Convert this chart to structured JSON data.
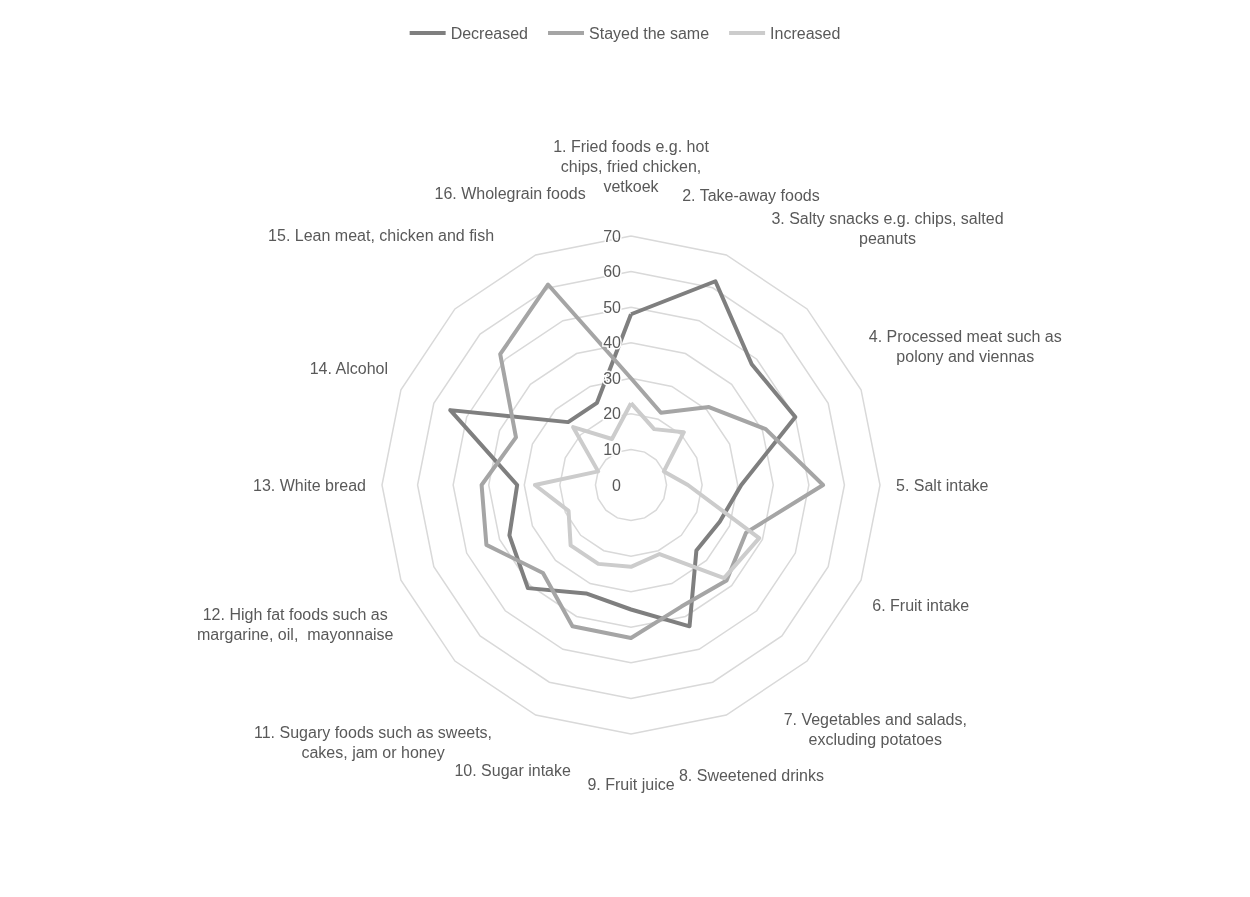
{
  "chart_data": {
    "type": "radar",
    "categories": [
      "1. Fried foods e.g. hot chips, fried chicken, vetkoek",
      "2. Take-away foods",
      "3. Salty snacks e.g. chips, salted peanuts",
      "4. Processed meat such as polony and viennas",
      "5. Salt intake",
      "6. Fruit intake",
      "7. Vegetables and salads, excluding potatoes",
      "8. Sweetened drinks",
      "9. Fruit juice",
      "10. Sugar intake",
      "11. Sugary foods such as sweets, cakes, jam or honey",
      "12. High fat foods such as margarine, oil,  mayonnaise",
      "13. White bread",
      "14. Alcohol",
      "15. Lean meat, chicken and fish",
      "16. Wholegrain foods"
    ],
    "series": [
      {
        "name": "Decreased",
        "color": "#7f7f7f",
        "values": [
          48,
          62,
          48,
          50,
          31,
          27,
          26,
          43,
          35,
          33,
          41,
          37,
          32,
          55,
          25,
          25
        ]
      },
      {
        "name": "Stayed the same",
        "color": "#a5a5a5",
        "values": [
          30,
          22,
          31,
          41,
          54,
          35,
          38,
          37,
          43,
          43,
          35,
          44,
          42,
          35,
          52,
          61
        ]
      },
      {
        "name": "Increased",
        "color": "#cccccc",
        "values": [
          23,
          17,
          21,
          10,
          16,
          39,
          37,
          21,
          23,
          24,
          24,
          19,
          27,
          10,
          23,
          14
        ]
      }
    ],
    "ylim": [
      0,
      70
    ],
    "yticks": [
      0,
      10,
      20,
      30,
      40,
      50,
      60,
      70
    ],
    "grid": true,
    "legend": "top",
    "marker": "none",
    "line_style": "solid"
  }
}
